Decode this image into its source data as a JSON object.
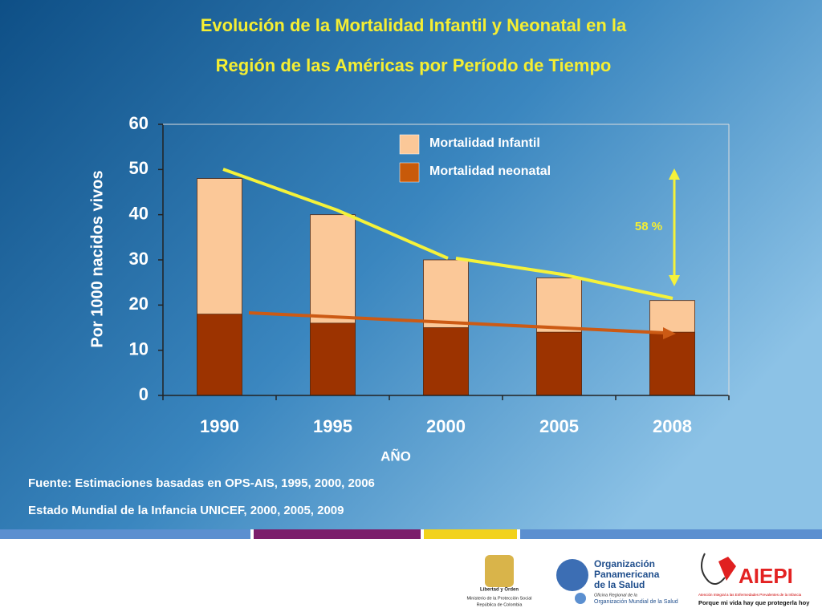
{
  "chart_data": {
    "type": "bar",
    "overlap": true,
    "title": [
      "Evolución de la Mortalidad Infantil y Neonatal en la",
      "Región de las Américas por Período de Tiempo"
    ],
    "categories": [
      "1990",
      "1995",
      "2000",
      "2005",
      "2008"
    ],
    "series": [
      {
        "name": "Mortalidad Infantil",
        "color": "#fbc898",
        "values": [
          48,
          40,
          30,
          26,
          21
        ]
      },
      {
        "name": "Mortalidad neonatal",
        "color": "#9c3300",
        "values": [
          18,
          16,
          15,
          14,
          14
        ]
      }
    ],
    "ylim": [
      0,
      60
    ],
    "yticks": [
      0,
      10,
      20,
      30,
      40,
      50,
      60
    ],
    "ylabel": "Por 1000 nacidos vivos",
    "xlabel": "AÑO",
    "annotation": "58 %",
    "legend": "top-center"
  },
  "source": [
    "Fuente: Estimaciones basadas en OPS-AIS, 1995, 2000, 2006",
    "Estado Mundial de la Infancia UNICEF, 2000, 2005, 2009"
  ],
  "logos": {
    "colombia": [
      "Libertad y Orden",
      "Ministerio de la Protección Social",
      "República de Colombia"
    ],
    "ops": [
      "Organización",
      "Panamericana",
      "de la Salud",
      "Oficina Regional de la",
      "Organización Mundial de la Salud"
    ],
    "aiepi": [
      "AIEPI",
      "Atención Integral a las Enfermedades Prevalentes de la Infancia",
      "Porque mi vida hay que protegerla hoy"
    ]
  }
}
